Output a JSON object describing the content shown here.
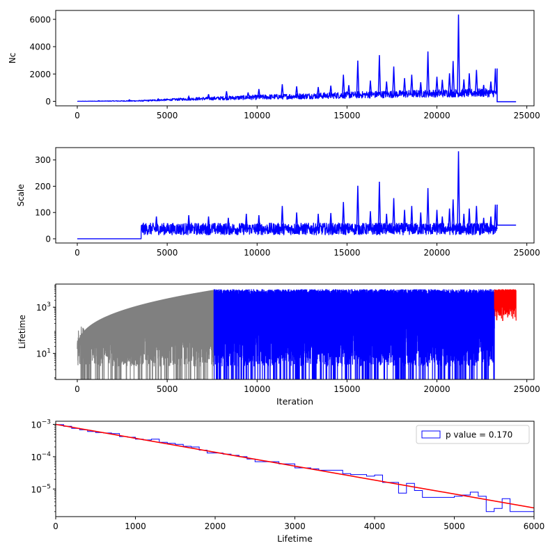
{
  "chart_data": [
    {
      "type": "line",
      "title": "",
      "xlabel": "",
      "ylabel": "Nc",
      "xlim": [
        -1200,
        25400
      ],
      "ylim": [
        -330,
        6650
      ],
      "yscale": "linear",
      "xticks": [
        0,
        5000,
        10000,
        15000,
        20000,
        25000
      ],
      "xtick_labels": [
        "0",
        "5000",
        "10000",
        "15000",
        "20000",
        "25000"
      ],
      "yticks": [
        0,
        2000,
        4000,
        6000
      ],
      "ytick_labels": [
        "0",
        "2000",
        "4000",
        "6000"
      ],
      "grid": false,
      "series": [
        {
          "color": "#0000ff",
          "x_end_active": 23350,
          "x_end": 24400,
          "baseline": [
            [
              0,
              0
            ],
            [
              3500,
              30
            ],
            [
              6000,
              150
            ],
            [
              10000,
              280
            ],
            [
              15000,
              430
            ],
            [
              20000,
              560
            ],
            [
              23350,
              600
            ]
          ],
          "spread": [
            [
              0,
              10
            ],
            [
              3500,
              60
            ],
            [
              10000,
              250
            ],
            [
              15000,
              350
            ],
            [
              23350,
              450
            ]
          ],
          "spikes": [
            [
              1200,
              40
            ],
            [
              2900,
              110
            ],
            [
              4500,
              180
            ],
            [
              6200,
              360
            ],
            [
              7300,
              520
            ],
            [
              8300,
              740
            ],
            [
              9500,
              650
            ],
            [
              10100,
              900
            ],
            [
              11400,
              1250
            ],
            [
              12200,
              1100
            ],
            [
              13400,
              1050
            ],
            [
              14100,
              1150
            ],
            [
              14800,
              1950
            ],
            [
              15100,
              1180
            ],
            [
              15600,
              2980
            ],
            [
              16300,
              1520
            ],
            [
              16800,
              3380
            ],
            [
              17200,
              1450
            ],
            [
              17600,
              2550
            ],
            [
              18200,
              1700
            ],
            [
              18600,
              1950
            ],
            [
              19100,
              1400
            ],
            [
              19500,
              3650
            ],
            [
              20000,
              1800
            ],
            [
              20300,
              1580
            ],
            [
              20700,
              2050
            ],
            [
              20900,
              2950
            ],
            [
              21200,
              6350
            ],
            [
              21500,
              1600
            ],
            [
              21800,
              2050
            ],
            [
              22200,
              2300
            ],
            [
              22600,
              1200
            ],
            [
              23000,
              1450
            ],
            [
              23250,
              2400
            ]
          ],
          "tail": [
            [
              23350,
              -30
            ],
            [
              24400,
              -30
            ]
          ]
        }
      ]
    },
    {
      "type": "line",
      "title": "",
      "xlabel": "",
      "ylabel": "Scale",
      "xlim": [
        -1200,
        25400
      ],
      "ylim": [
        -16,
        347
      ],
      "yscale": "linear",
      "xticks": [
        0,
        5000,
        10000,
        15000,
        20000,
        25000
      ],
      "xtick_labels": [
        "0",
        "5000",
        "10000",
        "15000",
        "20000",
        "25000"
      ],
      "yticks": [
        0,
        100,
        200,
        300
      ],
      "ytick_labels": [
        "0",
        "100",
        "200",
        "300"
      ],
      "grid": false,
      "series": [
        {
          "color": "#0000ff",
          "x_start_active": 3550,
          "x_end_active": 23350,
          "flat_start": [
            [
              0,
              0
            ],
            [
              3550,
              0
            ]
          ],
          "band": [
            15,
            60
          ],
          "spikes": [
            [
              4400,
              85
            ],
            [
              6200,
              90
            ],
            [
              7300,
              85
            ],
            [
              8400,
              80
            ],
            [
              9400,
              95
            ],
            [
              10100,
              90
            ],
            [
              11400,
              125
            ],
            [
              12200,
              100
            ],
            [
              13400,
              95
            ],
            [
              14100,
              98
            ],
            [
              14800,
              140
            ],
            [
              15600,
              202
            ],
            [
              16300,
              105
            ],
            [
              16800,
              217
            ],
            [
              17200,
              95
            ],
            [
              17600,
              155
            ],
            [
              18200,
              110
            ],
            [
              18600,
              125
            ],
            [
              19100,
              100
            ],
            [
              19500,
              193
            ],
            [
              20000,
              110
            ],
            [
              20300,
              85
            ],
            [
              20700,
              115
            ],
            [
              20900,
              150
            ],
            [
              21200,
              333
            ],
            [
              21500,
              95
            ],
            [
              21800,
              115
            ],
            [
              22200,
              125
            ],
            [
              22600,
              80
            ],
            [
              23000,
              85
            ],
            [
              23250,
              130
            ]
          ],
          "tail": [
            [
              23350,
              52
            ],
            [
              24400,
              52
            ]
          ]
        }
      ]
    },
    {
      "type": "line",
      "title": "",
      "xlabel": "Iteration",
      "ylabel": "Lifetime",
      "xlim": [
        -1200,
        25400
      ],
      "ylim": [
        0.75,
        10000
      ],
      "yscale": "log",
      "xticks": [
        0,
        5000,
        10000,
        15000,
        20000,
        25000
      ],
      "xtick_labels": [
        "0",
        "5000",
        "10000",
        "15000",
        "20000",
        "25000"
      ],
      "yticks": [
        10,
        1000
      ],
      "ytick_labels": [
        "10^1",
        "10^3"
      ],
      "grid": false,
      "series": [
        {
          "color": "#808080",
          "x_range": [
            0,
            7600
          ],
          "envelope_max": 6000,
          "min": 0.75
        },
        {
          "color": "#0000ff",
          "x_range": [
            7600,
            23200
          ],
          "envelope_max": 6000,
          "min": 0.75
        },
        {
          "color": "#ff0000",
          "x_range": [
            23200,
            24400
          ],
          "envelope_max": 6000,
          "min": 200
        }
      ]
    },
    {
      "type": "histogram",
      "title": "",
      "xlabel": "Lifetime",
      "ylabel": "",
      "xlim": [
        0,
        6000
      ],
      "ylim": [
        1.4e-06,
        0.00125
      ],
      "yscale": "log",
      "xticks": [
        0,
        1000,
        2000,
        3000,
        4000,
        5000,
        6000
      ],
      "xtick_labels": [
        "0",
        "1000",
        "2000",
        "3000",
        "4000",
        "5000",
        "6000"
      ],
      "yticks": [
        1e-05,
        0.0001,
        0.001
      ],
      "ytick_labels": [
        "10^-5",
        "10^-4",
        "10^-3"
      ],
      "grid": false,
      "legend": {
        "placement": "top-right",
        "label": "p value = 0.170"
      },
      "series": [
        {
          "name": "p value = 0.170",
          "color": "#0000ff",
          "bin_edges": [
            0,
            100,
            200,
            300,
            400,
            500,
            600,
            700,
            800,
            900,
            1000,
            1100,
            1200,
            1300,
            1400,
            1500,
            1600,
            1700,
            1800,
            1900,
            2000,
            2100,
            2200,
            2300,
            2400,
            2500,
            2600,
            2700,
            2800,
            2900,
            3000,
            3100,
            3200,
            3300,
            3400,
            3500,
            3600,
            3700,
            3800,
            3900,
            4000,
            4100,
            4200,
            4300,
            4400,
            4500,
            4600,
            4700,
            4800,
            4900,
            5000,
            5100,
            5200,
            5300,
            5400,
            5500,
            5600,
            5700,
            5800,
            5900,
            6000
          ],
          "values": [
            0.00098,
            0.00087,
            0.00075,
            0.00068,
            0.0006,
            0.00056,
            0.00054,
            0.00052,
            0.00042,
            0.0004,
            0.00035,
            0.00033,
            0.00035,
            0.00028,
            0.00026,
            0.00024,
            0.00021,
            0.0002,
            0.00016,
            0.00013,
            0.00013,
            0.00012,
            0.00011,
            0.0001,
            8.5e-05,
            7e-05,
            7e-05,
            7e-05,
            6e-05,
            6e-05,
            4.5e-05,
            4.5e-05,
            4.2e-05,
            3.8e-05,
            3.8e-05,
            3.8e-05,
            3e-05,
            2.8e-05,
            2.8e-05,
            2.5e-05,
            2.7e-05,
            1.6e-05,
            1.6e-05,
            7.5e-06,
            1.5e-05,
            9e-06,
            5.5e-06,
            5.5e-06,
            5.5e-06,
            5.5e-06,
            6e-06,
            6.5e-06,
            8e-06,
            6e-06,
            2e-06,
            2.5e-06,
            5e-06,
            2e-06,
            2e-06,
            2e-06
          ]
        },
        {
          "name": "fit",
          "color": "#ff0000",
          "points": [
            [
              0,
              0.001
            ],
            [
              6000,
              2.6e-06
            ]
          ]
        }
      ]
    }
  ]
}
